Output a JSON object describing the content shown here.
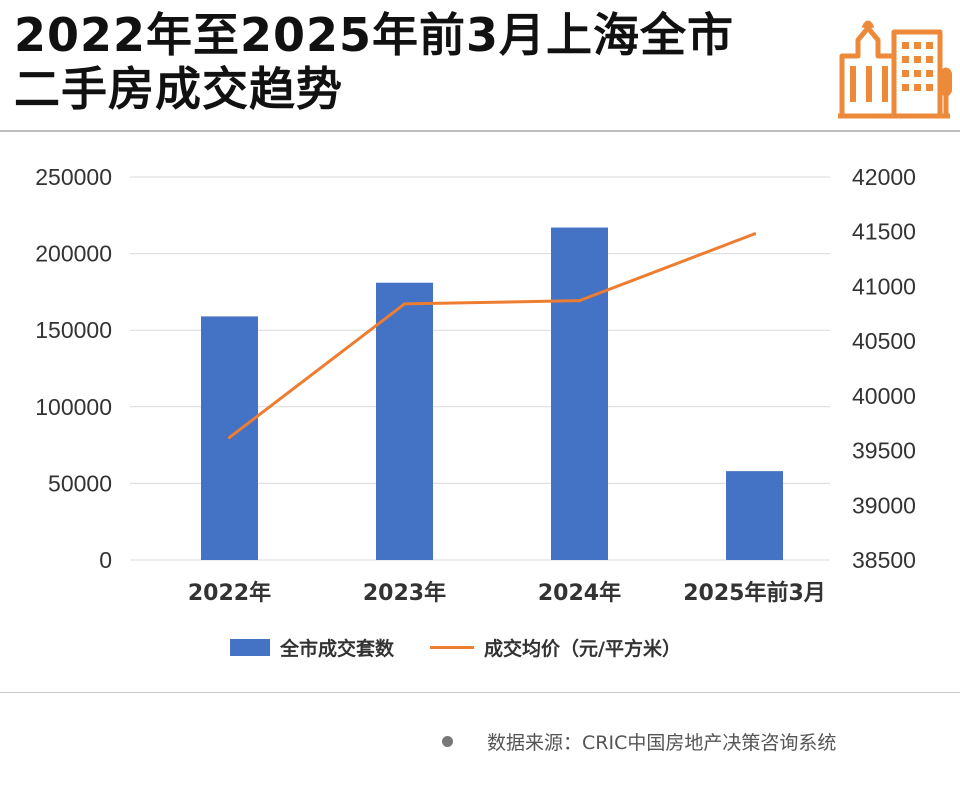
{
  "title": {
    "line1": "2022年至2025年前3月上海全市",
    "line2": "二手房成交趋势"
  },
  "logo_icon": "city-buildings-icon",
  "chart_data": {
    "type": "bar+line",
    "categories": [
      "2022年",
      "2023年",
      "2024年",
      "2025年前3月"
    ],
    "series": [
      {
        "name": "全市成交套数",
        "type": "bar",
        "axis": "left",
        "color": "#4472c4",
        "values": [
          159000,
          181000,
          217000,
          58000
        ]
      },
      {
        "name": "成交均价（元/平方米）",
        "type": "line",
        "axis": "right",
        "color": "#ed7d31",
        "values": [
          39620,
          40840,
          40870,
          41480
        ]
      }
    ],
    "y_left": {
      "min": 0,
      "max": 250000,
      "ticks": [
        "0",
        "50000",
        "100000",
        "150000",
        "200000",
        "250000"
      ]
    },
    "y_right": {
      "min": 38500,
      "max": 42000,
      "ticks": [
        "38500",
        "39000",
        "39500",
        "40000",
        "40500",
        "41000",
        "41500",
        "42000"
      ]
    },
    "grid": true,
    "legend_position": "bottom"
  },
  "legend": {
    "bar_label": "全市成交套数",
    "line_label": "成交均价（元/平方米）"
  },
  "source": "数据来源：CRIC中国房地产决策咨询系统"
}
